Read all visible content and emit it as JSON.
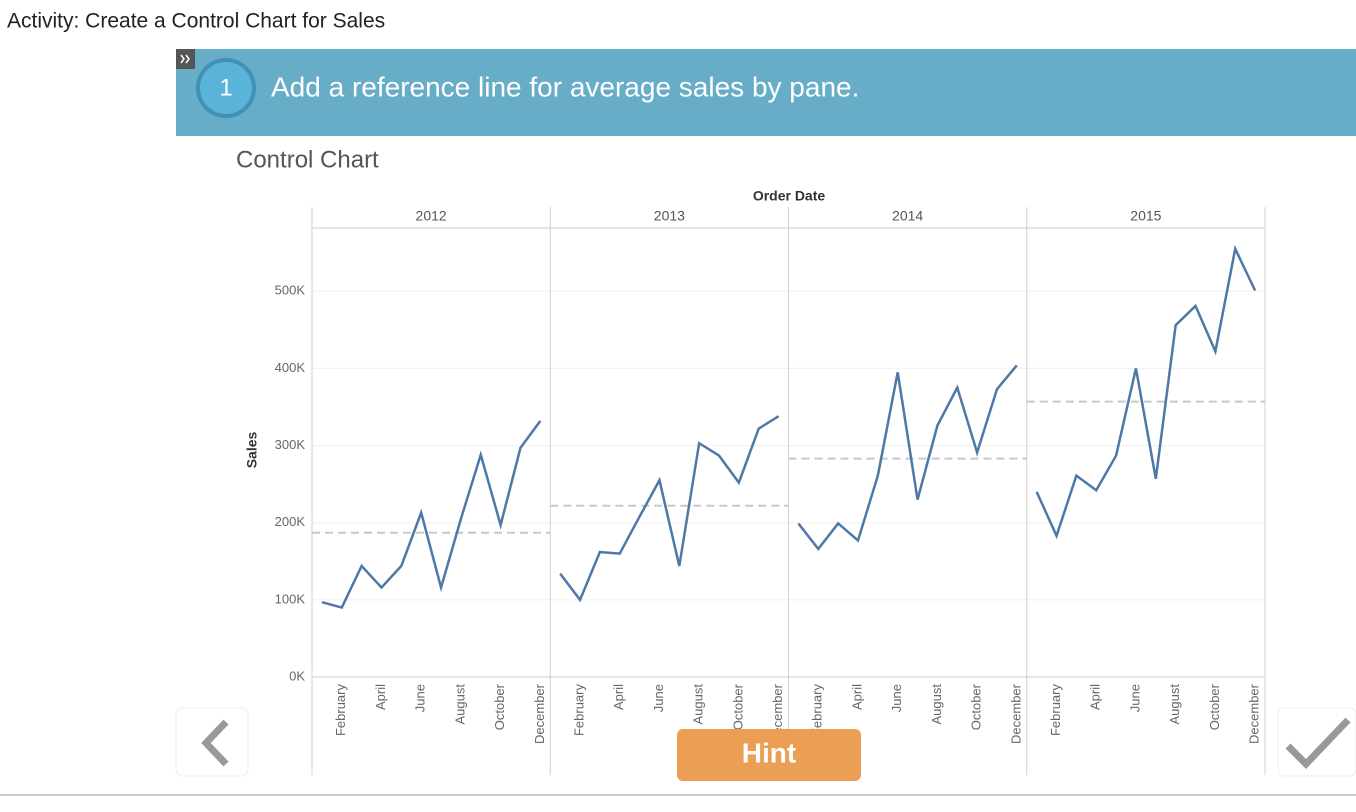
{
  "activity_title": "Activity: Create a Control Chart for Sales",
  "step": {
    "number": 1,
    "instruction": "Add a reference line for average sales by pane."
  },
  "chart_data": {
    "type": "line",
    "title": "Control Chart",
    "x_axis_title": "Order Date",
    "y_axis_title": "Sales",
    "categories": [
      null,
      "February",
      null,
      "April",
      null,
      "June",
      null,
      "August",
      null,
      "October",
      null,
      "December"
    ],
    "panes": [
      {
        "label": "2012",
        "values": [
          97000,
          90000,
          144000,
          116000,
          144000,
          213000,
          116000,
          205000,
          288000,
          197000,
          297000,
          332000
        ],
        "reference_line": 187000
      },
      {
        "label": "2013",
        "values": [
          134000,
          100000,
          162000,
          160000,
          208000,
          255000,
          144000,
          303000,
          287000,
          252000,
          322000,
          338000
        ],
        "reference_line": 222000
      },
      {
        "label": "2014",
        "values": [
          199000,
          166000,
          199000,
          177000,
          261000,
          395000,
          230000,
          326000,
          375000,
          291000,
          373000,
          404000
        ],
        "reference_line": 283000
      },
      {
        "label": "2015",
        "values": [
          240000,
          183000,
          261000,
          242000,
          287000,
          400000,
          257000,
          456000,
          481000,
          422000,
          555000,
          501000
        ],
        "reference_line": 357000
      }
    ],
    "color": "#4e79a7",
    "reference_line_color": "#c8c8c8",
    "ylim": [
      0,
      582000
    ],
    "yticks": [
      {
        "value": 0,
        "label": "0K"
      },
      {
        "value": 100000,
        "label": "100K"
      },
      {
        "value": 200000,
        "label": "200K"
      },
      {
        "value": 300000,
        "label": "300K"
      },
      {
        "value": 400000,
        "label": "400K"
      },
      {
        "value": 500000,
        "label": "500K"
      }
    ],
    "grid": true
  },
  "hint_button": "Hint"
}
